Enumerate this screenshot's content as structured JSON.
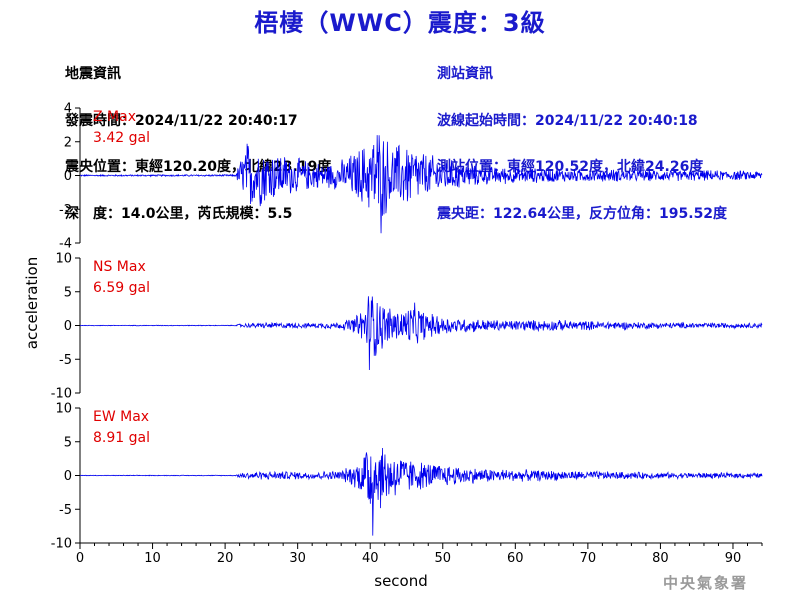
{
  "title": "梧棲（WWC）震度：3級",
  "quake_info": {
    "heading": "地震資訊",
    "origin_time": "發震時間：2024/11/22 20:40:17",
    "epicenter": "震央位置：東經120.20度，北緯23.19度",
    "depth_magnitude": "深　度：14.0公里，芮氏規模：5.5"
  },
  "station_info": {
    "heading": "測站資訊",
    "wave_start": "波線起始時間：2024/11/22 20:40:18",
    "location": "測站位置：東經120.52度，北緯24.26度",
    "distance": "震央距：122.64公里，反方位角：195.52度"
  },
  "credit": "中央氣象署",
  "colors": {
    "trace": "#0000ee",
    "label_red": "#e00000",
    "title_blue": "#1a1acc"
  },
  "chart_data": {
    "type": "line",
    "xlabel": "second",
    "ylabel": "acceleration",
    "xlim": [
      0,
      94
    ],
    "xticks": [
      0,
      10,
      20,
      30,
      40,
      50,
      60,
      70,
      80,
      90
    ],
    "panels": [
      {
        "name": "Z",
        "label_line1": "Z Max",
        "label_line2": "3.42 gal",
        "max_abs": 3.42,
        "ylim": [
          -4,
          4
        ],
        "yticks": [
          4,
          2,
          0,
          -2,
          -4
        ],
        "envelope": [
          {
            "t": 0,
            "a": 0.05
          },
          {
            "t": 21.5,
            "a": 0.06
          },
          {
            "t": 22,
            "a": 1.0
          },
          {
            "t": 23,
            "a": 2.3
          },
          {
            "t": 25,
            "a": 2.0
          },
          {
            "t": 28,
            "a": 1.4
          },
          {
            "t": 31,
            "a": 1.0
          },
          {
            "t": 34,
            "a": 0.8
          },
          {
            "t": 36,
            "a": 1.0
          },
          {
            "t": 38,
            "a": 1.6
          },
          {
            "t": 40,
            "a": 2.4
          },
          {
            "t": 41,
            "a": 3.42
          },
          {
            "t": 43,
            "a": 2.0
          },
          {
            "t": 45,
            "a": 2.2
          },
          {
            "t": 48,
            "a": 1.4
          },
          {
            "t": 52,
            "a": 0.9
          },
          {
            "t": 56,
            "a": 0.6
          },
          {
            "t": 65,
            "a": 0.45
          },
          {
            "t": 75,
            "a": 0.4
          },
          {
            "t": 85,
            "a": 0.35
          },
          {
            "t": 94,
            "a": 0.3
          }
        ]
      },
      {
        "name": "NS",
        "label_line1": "NS Max",
        "label_line2": "6.59 gal",
        "max_abs": 6.59,
        "ylim": [
          -10,
          10
        ],
        "yticks": [
          10,
          5,
          0,
          -5,
          -10
        ],
        "envelope": [
          {
            "t": 0,
            "a": 0.05
          },
          {
            "t": 21.5,
            "a": 0.06
          },
          {
            "t": 22,
            "a": 0.3
          },
          {
            "t": 26,
            "a": 0.5
          },
          {
            "t": 32,
            "a": 0.4
          },
          {
            "t": 36,
            "a": 0.6
          },
          {
            "t": 38,
            "a": 1.5
          },
          {
            "t": 39,
            "a": 3.0
          },
          {
            "t": 40,
            "a": 6.59
          },
          {
            "t": 42,
            "a": 3.5
          },
          {
            "t": 44,
            "a": 2.5
          },
          {
            "t": 46,
            "a": 3.6
          },
          {
            "t": 48,
            "a": 2.0
          },
          {
            "t": 52,
            "a": 1.2
          },
          {
            "t": 58,
            "a": 0.9
          },
          {
            "t": 65,
            "a": 0.9
          },
          {
            "t": 72,
            "a": 0.7
          },
          {
            "t": 80,
            "a": 0.5
          },
          {
            "t": 94,
            "a": 0.4
          }
        ]
      },
      {
        "name": "EW",
        "label_line1": "EW Max",
        "label_line2": "8.91 gal",
        "max_abs": 8.91,
        "ylim": [
          -10,
          10
        ],
        "yticks": [
          10,
          5,
          0,
          -5,
          -10
        ],
        "envelope": [
          {
            "t": 0,
            "a": 0.05
          },
          {
            "t": 21.5,
            "a": 0.06
          },
          {
            "t": 22,
            "a": 0.5
          },
          {
            "t": 26,
            "a": 0.7
          },
          {
            "t": 32,
            "a": 0.6
          },
          {
            "t": 36,
            "a": 0.8
          },
          {
            "t": 38,
            "a": 2.0
          },
          {
            "t": 39,
            "a": 3.5
          },
          {
            "t": 40,
            "a": 8.91
          },
          {
            "t": 41,
            "a": 6.0
          },
          {
            "t": 43,
            "a": 4.0
          },
          {
            "t": 46,
            "a": 2.5
          },
          {
            "t": 50,
            "a": 1.8
          },
          {
            "t": 55,
            "a": 1.2
          },
          {
            "t": 62,
            "a": 0.9
          },
          {
            "t": 70,
            "a": 0.7
          },
          {
            "t": 80,
            "a": 0.5
          },
          {
            "t": 94,
            "a": 0.4
          }
        ]
      }
    ]
  }
}
